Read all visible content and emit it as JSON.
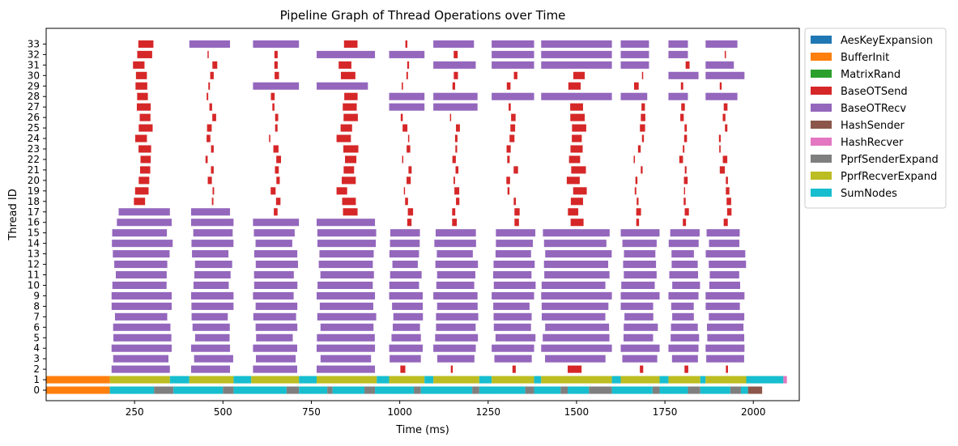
{
  "chart_data": {
    "type": "gantt",
    "title": "Pipeline Graph of Thread Operations over Time",
    "xlabel": "Time (ms)",
    "ylabel": "Thread ID",
    "xlim": [
      0,
      2130
    ],
    "ylim": [
      -1,
      34.5
    ],
    "xticks": [
      250,
      500,
      750,
      1000,
      1250,
      1500,
      1750,
      2000
    ],
    "yticks": [
      "0",
      "1",
      "2",
      "3",
      "4",
      "5",
      "6",
      "7",
      "8",
      "9",
      "10",
      "11",
      "12",
      "13",
      "14",
      "15",
      "16",
      "17",
      "18",
      "19",
      "20",
      "21",
      "22",
      "23",
      "24",
      "25",
      "26",
      "27",
      "28",
      "29",
      "30",
      "31",
      "32",
      "33"
    ],
    "grid": false,
    "legend_position": "outside-right",
    "operations": [
      {
        "name": "AesKeyExpansion",
        "color": "#1f77b4"
      },
      {
        "name": "BufferInit",
        "color": "#ff7f0e"
      },
      {
        "name": "MatrixRand",
        "color": "#2ca02c"
      },
      {
        "name": "BaseOTSend",
        "color": "#d62728"
      },
      {
        "name": "BaseOTRecv",
        "color": "#9467bd"
      },
      {
        "name": "HashSender",
        "color": "#8c564b"
      },
      {
        "name": "HashRecver",
        "color": "#e377c2"
      },
      {
        "name": "PprfSenderExpand",
        "color": "#7f7f7f"
      },
      {
        "name": "PprfRecverExpand",
        "color": "#bcbd22"
      },
      {
        "name": "SumNodes",
        "color": "#17becf"
      }
    ],
    "batch_windows": [
      [
        180,
        360
      ],
      [
        405,
        530
      ],
      [
        580,
        715
      ],
      [
        760,
        935
      ],
      [
        965,
        1070
      ],
      [
        1090,
        1225
      ],
      [
        1255,
        1385
      ],
      [
        1395,
        1600
      ],
      [
        1620,
        1735
      ],
      [
        1755,
        1850
      ],
      [
        1860,
        1980
      ]
    ],
    "recv_spans": {
      "2": [
        [
          185,
          350
        ],
        [
          410,
          520
        ],
        [
          585,
          710
        ],
        [
          765,
          930
        ]
      ],
      "4": [
        [
          185,
          355
        ],
        [
          410,
          520
        ],
        [
          585,
          710
        ],
        [
          765,
          930
        ],
        [
          970,
          1065
        ],
        [
          1095,
          1215
        ],
        [
          1260,
          1380
        ],
        [
          1400,
          1600
        ],
        [
          1625,
          1735
        ],
        [
          1760,
          1845
        ],
        [
          1865,
          1975
        ]
      ],
      "9": [
        [
          185,
          355
        ],
        [
          410,
          530
        ],
        [
          585,
          700
        ],
        [
          765,
          930
        ],
        [
          970,
          1065
        ],
        [
          1095,
          1220
        ],
        [
          1260,
          1380
        ],
        [
          1400,
          1600
        ],
        [
          1625,
          1735
        ],
        [
          1760,
          1845
        ],
        [
          1865,
          1975
        ]
      ],
      "16": [
        [
          200,
          355
        ],
        [
          410,
          530
        ],
        [
          585,
          715
        ],
        [
          765,
          930
        ]
      ],
      "17": [
        [
          205,
          350
        ],
        [
          410,
          520
        ]
      ],
      "27": [
        [
          970,
          1070
        ],
        [
          1095,
          1220
        ]
      ],
      "28": [
        [
          970,
          1070
        ],
        [
          1095,
          1220
        ],
        [
          1260,
          1380
        ],
        [
          1400,
          1600
        ],
        [
          1625,
          1700
        ],
        [
          1760,
          1815
        ],
        [
          1865,
          1955
        ]
      ],
      "29": [
        [
          585,
          715
        ],
        [
          765,
          910
        ]
      ],
      "30": [
        [
          1760,
          1845
        ],
        [
          1865,
          1975
        ]
      ],
      "31": [
        [
          1095,
          1215
        ],
        [
          1260,
          1380
        ],
        [
          1400,
          1600
        ],
        [
          1625,
          1705
        ],
        [
          1865,
          1945
        ]
      ],
      "32": [
        [
          765,
          930
        ],
        [
          970,
          1070
        ],
        [
          1260,
          1380
        ],
        [
          1400,
          1600
        ],
        [
          1625,
          1705
        ],
        [
          1760,
          1815
        ]
      ],
      "33": [
        [
          405,
          520
        ],
        [
          585,
          715
        ],
        [
          1095,
          1210
        ],
        [
          1260,
          1380
        ],
        [
          1400,
          1600
        ],
        [
          1625,
          1705
        ],
        [
          1760,
          1815
        ],
        [
          1865,
          1955
        ]
      ]
    },
    "thread_1_segments": [
      {
        "op": "BufferInit",
        "start": 0,
        "end": 180
      },
      {
        "op": "PprfRecverExpand",
        "start": 180,
        "end": 350
      },
      {
        "op": "SumNodes",
        "start": 350,
        "end": 405
      },
      {
        "op": "PprfRecverExpand",
        "start": 405,
        "end": 530
      },
      {
        "op": "SumNodes",
        "start": 530,
        "end": 580
      },
      {
        "op": "PprfRecverExpand",
        "start": 580,
        "end": 715
      },
      {
        "op": "SumNodes",
        "start": 715,
        "end": 765
      },
      {
        "op": "PprfRecverExpand",
        "start": 765,
        "end": 935
      },
      {
        "op": "SumNodes",
        "start": 935,
        "end": 970
      },
      {
        "op": "PprfRecverExpand",
        "start": 970,
        "end": 1070
      },
      {
        "op": "SumNodes",
        "start": 1070,
        "end": 1095
      },
      {
        "op": "PprfRecverExpand",
        "start": 1095,
        "end": 1225
      },
      {
        "op": "SumNodes",
        "start": 1225,
        "end": 1260
      },
      {
        "op": "PprfRecverExpand",
        "start": 1260,
        "end": 1380
      },
      {
        "op": "SumNodes",
        "start": 1380,
        "end": 1400
      },
      {
        "op": "PprfRecverExpand",
        "start": 1400,
        "end": 1600
      },
      {
        "op": "SumNodes",
        "start": 1600,
        "end": 1625
      },
      {
        "op": "PprfRecverExpand",
        "start": 1625,
        "end": 1735
      },
      {
        "op": "SumNodes",
        "start": 1735,
        "end": 1760
      },
      {
        "op": "PprfRecverExpand",
        "start": 1760,
        "end": 1850
      },
      {
        "op": "SumNodes",
        "start": 1850,
        "end": 1865
      },
      {
        "op": "PprfRecverExpand",
        "start": 1865,
        "end": 1980
      },
      {
        "op": "SumNodes",
        "start": 1980,
        "end": 2085
      },
      {
        "op": "HashRecver",
        "start": 2085,
        "end": 2095
      }
    ],
    "thread_0_segments": [
      {
        "op": "BufferInit",
        "start": 0,
        "end": 180
      },
      {
        "op": "SumNodes",
        "start": 180,
        "end": 305
      },
      {
        "op": "PprfSenderExpand",
        "start": 305,
        "end": 360
      },
      {
        "op": "SumNodes",
        "start": 360,
        "end": 500
      },
      {
        "op": "PprfSenderExpand",
        "start": 500,
        "end": 530
      },
      {
        "op": "SumNodes",
        "start": 530,
        "end": 680
      },
      {
        "op": "PprfSenderExpand",
        "start": 680,
        "end": 715
      },
      {
        "op": "SumNodes",
        "start": 715,
        "end": 795
      },
      {
        "op": "PprfSenderExpand",
        "start": 795,
        "end": 810
      },
      {
        "op": "SumNodes",
        "start": 810,
        "end": 900
      },
      {
        "op": "PprfSenderExpand",
        "start": 900,
        "end": 930
      },
      {
        "op": "SumNodes",
        "start": 930,
        "end": 1040
      },
      {
        "op": "PprfSenderExpand",
        "start": 1040,
        "end": 1060
      },
      {
        "op": "SumNodes",
        "start": 1060,
        "end": 1205
      },
      {
        "op": "PprfSenderExpand",
        "start": 1205,
        "end": 1225
      },
      {
        "op": "SumNodes",
        "start": 1225,
        "end": 1355
      },
      {
        "op": "PprfSenderExpand",
        "start": 1355,
        "end": 1380
      },
      {
        "op": "SumNodes",
        "start": 1380,
        "end": 1455
      },
      {
        "op": "PprfSenderExpand",
        "start": 1455,
        "end": 1475
      },
      {
        "op": "SumNodes",
        "start": 1475,
        "end": 1535
      },
      {
        "op": "PprfSenderExpand",
        "start": 1535,
        "end": 1600
      },
      {
        "op": "SumNodes",
        "start": 1600,
        "end": 1715
      },
      {
        "op": "PprfSenderExpand",
        "start": 1715,
        "end": 1735
      },
      {
        "op": "SumNodes",
        "start": 1735,
        "end": 1815
      },
      {
        "op": "PprfSenderExpand",
        "start": 1815,
        "end": 1850
      },
      {
        "op": "SumNodes",
        "start": 1850,
        "end": 1935
      },
      {
        "op": "PprfSenderExpand",
        "start": 1935,
        "end": 1965
      },
      {
        "op": "SumNodes",
        "start": 1965,
        "end": 1985
      },
      {
        "op": "HashSender",
        "start": 1985,
        "end": 2025
      }
    ]
  }
}
